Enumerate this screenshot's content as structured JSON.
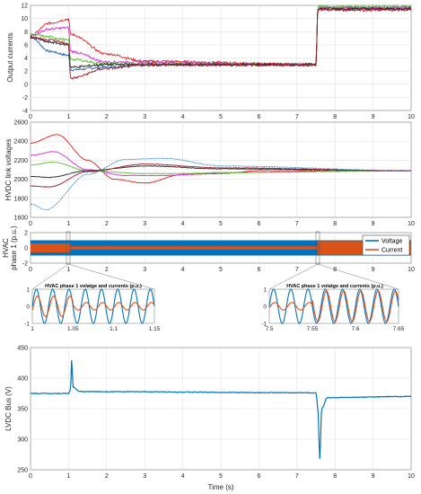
{
  "colors": {
    "blue": "#1f63b5",
    "red": "#e02020",
    "magenta": "#d92bd9",
    "green": "#5fbf3a",
    "black": "#222222",
    "grey": "#707070",
    "dashblue": "#2a8ad8",
    "darkred": "#9e1c2c",
    "voltage": "#0072bd",
    "current": "#d95319",
    "grid": "#dcdcdc"
  },
  "chart_data": [
    {
      "type": "line",
      "id": "output-currents",
      "ylabel": "Output currents",
      "xlim": [
        0,
        10
      ],
      "ylim": [
        -4,
        12
      ],
      "xticks": [
        "0",
        "1",
        "2",
        "3",
        "4",
        "5",
        "6",
        "7",
        "8",
        "9",
        "10"
      ],
      "yticks": [
        "-4",
        "-2",
        "0",
        "2",
        "4",
        "6",
        "8",
        "10",
        "12"
      ],
      "series": [
        {
          "color": "blue",
          "values": [
            [
              0,
              7.2
            ],
            [
              0.5,
              5.0
            ],
            [
              1.0,
              4.4
            ],
            [
              1.05,
              2.2
            ],
            [
              2,
              2.6
            ],
            [
              3,
              3.0
            ],
            [
              7.5,
              3.0
            ],
            [
              7.55,
              11.7
            ],
            [
              10,
              11.7
            ]
          ]
        },
        {
          "color": "red",
          "values": [
            [
              0,
              7.4
            ],
            [
              0.5,
              9.3
            ],
            [
              1.0,
              9.9
            ],
            [
              1.05,
              7.6
            ],
            [
              2,
              4.6
            ],
            [
              3,
              3.5
            ],
            [
              7.5,
              3.0
            ],
            [
              7.55,
              11.4
            ],
            [
              10,
              11.4
            ]
          ]
        },
        {
          "color": "magenta",
          "values": [
            [
              0,
              7.4
            ],
            [
              0.5,
              8.4
            ],
            [
              1.0,
              8.6
            ],
            [
              1.05,
              5.0
            ],
            [
              2,
              3.4
            ],
            [
              7.5,
              3.0
            ],
            [
              7.55,
              11.6
            ],
            [
              10,
              11.6
            ]
          ]
        },
        {
          "color": "green",
          "values": [
            [
              0,
              7.6
            ],
            [
              0.5,
              7.2
            ],
            [
              1.0,
              6.7
            ],
            [
              1.05,
              3.8
            ],
            [
              2,
              3.1
            ],
            [
              7.5,
              3.0
            ],
            [
              7.55,
              11.8
            ],
            [
              10,
              11.8
            ]
          ]
        },
        {
          "color": "black",
          "values": [
            [
              0,
              7.2
            ],
            [
              0.5,
              6.4
            ],
            [
              1.0,
              6.0
            ],
            [
              1.05,
              2.6
            ],
            [
              2,
              3.0
            ],
            [
              7.5,
              3.0
            ],
            [
              7.55,
              11.5
            ],
            [
              10,
              11.5
            ]
          ]
        },
        {
          "color": "darkred",
          "values": [
            [
              0,
              7.1
            ],
            [
              0.5,
              6.8
            ],
            [
              1.0,
              6.2
            ],
            [
              1.05,
              0.9
            ],
            [
              2,
              2.4
            ],
            [
              3,
              2.9
            ],
            [
              7.5,
              2.9
            ],
            [
              7.55,
              11.3
            ],
            [
              10,
              11.3
            ]
          ]
        }
      ]
    },
    {
      "type": "line",
      "id": "hvdc-link-voltages",
      "ylabel": "HVDC link voltages",
      "xlim": [
        0,
        10
      ],
      "ylim": [
        1600,
        2600
      ],
      "xticks": [
        "0",
        "1",
        "2",
        "3",
        "4",
        "5",
        "6",
        "7",
        "8",
        "9",
        "10"
      ],
      "yticks": [
        "1600",
        "1800",
        "2000",
        "2200",
        "2400",
        "2600"
      ],
      "series": [
        {
          "color": "red",
          "values": [
            [
              0,
              2380
            ],
            [
              0.7,
              2470
            ],
            [
              1.5,
              2200
            ],
            [
              2.2,
              2000
            ],
            [
              3,
              1960
            ],
            [
              4,
              2050
            ],
            [
              5,
              2060
            ],
            [
              6,
              2090
            ],
            [
              10,
              2090
            ]
          ]
        },
        {
          "color": "magenta",
          "values": [
            [
              0,
              2250
            ],
            [
              0.6,
              2290
            ],
            [
              1.5,
              2100
            ],
            [
              2.5,
              2040
            ],
            [
              3.5,
              2040
            ],
            [
              5,
              2070
            ],
            [
              10,
              2090
            ]
          ]
        },
        {
          "color": "green",
          "values": [
            [
              0,
              2150
            ],
            [
              0.6,
              2180
            ],
            [
              1.5,
              2090
            ],
            [
              3,
              2060
            ],
            [
              10,
              2090
            ]
          ]
        },
        {
          "color": "black",
          "values": [
            [
              0,
              2030
            ],
            [
              0.5,
              2020
            ],
            [
              1.5,
              2090
            ],
            [
              3,
              2140
            ],
            [
              5,
              2110
            ],
            [
              10,
              2090
            ]
          ]
        },
        {
          "color": "darkred",
          "values": [
            [
              0,
              1930
            ],
            [
              0.5,
              1920
            ],
            [
              1.5,
              2080
            ],
            [
              3,
              2160
            ],
            [
              5,
              2120
            ],
            [
              10,
              2090
            ]
          ]
        },
        {
          "color": "dashblue",
          "values": [
            [
              0,
              1740
            ],
            [
              0.4,
              1680
            ],
            [
              1.5,
              2050
            ],
            [
              2.5,
              2210
            ],
            [
              3.5,
              2220
            ],
            [
              5,
              2140
            ],
            [
              10,
              2090
            ]
          ]
        }
      ]
    },
    {
      "type": "line",
      "id": "hvac-phase-1",
      "ylabel_lines": [
        "HVAC",
        "phase 1 (p.u.)"
      ],
      "xlim": [
        0,
        10
      ],
      "ylim": [
        -2,
        2
      ],
      "xticks": [
        "0",
        "1",
        "2",
        "3",
        "4",
        "5",
        "6",
        "7",
        "8",
        "9",
        "10"
      ],
      "yticks": [
        "-2",
        "0",
        "2"
      ],
      "legend": {
        "placement": "top-right",
        "entries": [
          "Voltage",
          "Current"
        ]
      },
      "voltage_amplitude": 1,
      "current_amplitude_segments": [
        [
          0,
          1.05,
          0.6
        ],
        [
          1.05,
          7.55,
          0.22
        ],
        [
          7.55,
          10,
          0.9
        ]
      ]
    },
    {
      "type": "line",
      "id": "zoom-1",
      "title": "HVAC phase 1 volatge and currents (p.u.)",
      "xlim": [
        1,
        1.15
      ],
      "ylim": [
        -1,
        1
      ],
      "xticks": [
        "1",
        "1.05",
        "1.1",
        "1.15"
      ],
      "yticks": [
        "-1",
        "0",
        "1"
      ],
      "current_amplitude_segments": [
        [
          1,
          1.05,
          0.6
        ],
        [
          1.05,
          1.15,
          0.22
        ]
      ]
    },
    {
      "type": "line",
      "id": "zoom-2",
      "title": "HVAC phase 1 volatge and currents (p.u.)",
      "xlim": [
        7.5,
        7.65
      ],
      "ylim": [
        -1,
        1
      ],
      "xticks": [
        "7.5",
        "7.55",
        "7.6",
        "7.65"
      ],
      "yticks": [
        "-1",
        "0",
        "1"
      ],
      "current_amplitude_segments": [
        [
          7.5,
          7.55,
          0.22
        ],
        [
          7.55,
          7.65,
          0.9
        ]
      ]
    },
    {
      "type": "line",
      "id": "lvdc-bus",
      "ylabel": "LVDC Bus (V)",
      "xlabel": "Time (s)",
      "xlim": [
        0,
        10
      ],
      "ylim": [
        250,
        450
      ],
      "xticks": [
        "0",
        "1",
        "2",
        "3",
        "4",
        "5",
        "6",
        "7",
        "8",
        "9",
        "10"
      ],
      "yticks": [
        "250",
        "300",
        "350",
        "400",
        "450"
      ],
      "series": [
        {
          "color": "voltage",
          "values": [
            [
              0,
              375
            ],
            [
              1.0,
              375
            ],
            [
              1.05,
              380
            ],
            [
              1.08,
              430
            ],
            [
              1.12,
              385
            ],
            [
              1.3,
              378
            ],
            [
              7.5,
              376
            ],
            [
              7.55,
              350
            ],
            [
              7.6,
              268
            ],
            [
              7.65,
              350
            ],
            [
              7.8,
              368
            ],
            [
              10,
              370
            ]
          ]
        }
      ]
    }
  ]
}
